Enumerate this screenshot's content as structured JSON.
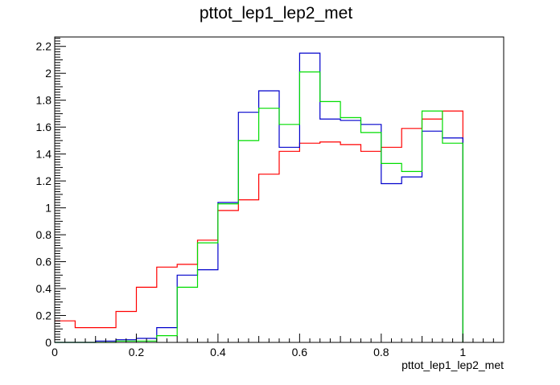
{
  "chart_data": {
    "type": "histogram",
    "title": "pttot_lep1_lep2_met",
    "xlabel": "pttot_lep1_lep2_met",
    "ylabel": "",
    "xlim": [
      0,
      1.1
    ],
    "ylim": [
      0,
      2.27
    ],
    "x_ticks": [
      "0",
      "0.2",
      "0.4",
      "0.6",
      "0.8",
      "1"
    ],
    "y_ticks": [
      "0",
      "0.2",
      "0.4",
      "0.6",
      "0.8",
      "1",
      "1.2",
      "1.4",
      "1.6",
      "1.8",
      "2",
      "2.2"
    ],
    "x_tick_values": [
      0,
      0.2,
      0.4,
      0.6,
      0.8,
      1.0
    ],
    "y_tick_values": [
      0,
      0.2,
      0.4,
      0.6,
      0.8,
      1.0,
      1.2,
      1.4,
      1.6,
      1.8,
      2.0,
      2.2
    ],
    "bin_edges": [
      0,
      0.05,
      0.1,
      0.15,
      0.2,
      0.25,
      0.3,
      0.35,
      0.4,
      0.45,
      0.5,
      0.55,
      0.6,
      0.65,
      0.7,
      0.75,
      0.8,
      0.85,
      0.9,
      0.95,
      1.0
    ],
    "grid": false,
    "series": [
      {
        "color": "#ff0000",
        "values": [
          0.16,
          0.11,
          0.11,
          0.23,
          0.41,
          0.56,
          0.58,
          0.76,
          0.98,
          1.06,
          1.25,
          1.42,
          1.48,
          1.49,
          1.47,
          1.42,
          1.45,
          1.59,
          1.66,
          1.72
        ]
      },
      {
        "color": "#0000cc",
        "values": [
          0.0,
          0.0,
          0.01,
          0.02,
          0.03,
          0.11,
          0.5,
          0.54,
          1.04,
          1.71,
          1.87,
          1.45,
          2.15,
          1.66,
          1.65,
          1.62,
          1.18,
          1.23,
          1.57,
          1.52
        ]
      },
      {
        "color": "#00dd00",
        "values": [
          0.0,
          0.0,
          0.0,
          0.01,
          0.01,
          0.05,
          0.41,
          0.74,
          1.03,
          1.5,
          1.74,
          1.62,
          2.01,
          1.79,
          1.67,
          1.56,
          1.33,
          1.27,
          1.72,
          1.48
        ]
      }
    ]
  }
}
